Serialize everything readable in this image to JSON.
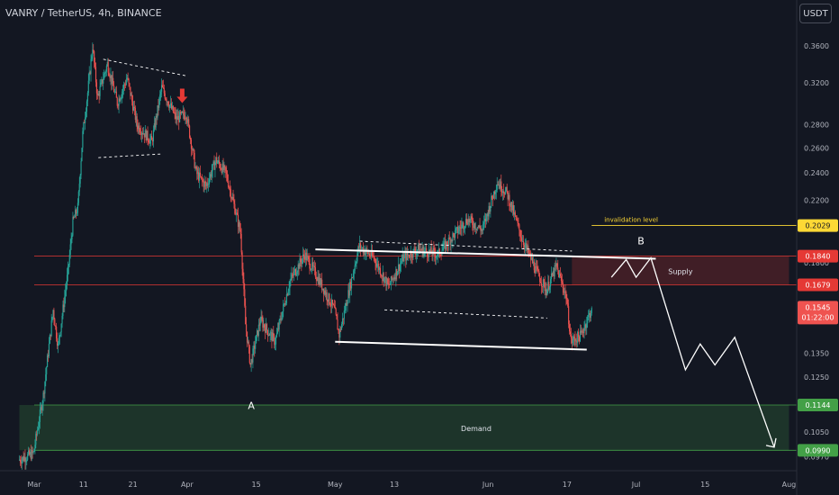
{
  "header": {
    "symbol_label": "VANRY / TetherUS, 4h, BINANCE",
    "currency_button": "USDT"
  },
  "chart_data": {
    "type": "candlestick",
    "title": "VANRY / TetherUS, 4h, BINANCE",
    "y_axis": {
      "scale": "log",
      "ticks": [
        "0.3600",
        "0.3200",
        "0.2800",
        "0.2600",
        "0.2400",
        "0.2200",
        "0.1800",
        "0.1350",
        "0.1250",
        "0.1050",
        "0.0970"
      ]
    },
    "x_axis": {
      "ticks": [
        "Mar",
        "11",
        "21",
        "Apr",
        "15",
        "May",
        "13",
        "Jun",
        "17",
        "Jul",
        "15",
        "Aug"
      ]
    },
    "price_path": [
      [
        "2024-02-27",
        0.096
      ],
      [
        "2024-03-01",
        0.098
      ],
      [
        "2024-03-03",
        0.118
      ],
      [
        "2024-03-05",
        0.155
      ],
      [
        "2024-03-06",
        0.138
      ],
      [
        "2024-03-08",
        0.175
      ],
      [
        "2024-03-09",
        0.205
      ],
      [
        "2024-03-10",
        0.215
      ],
      [
        "2024-03-11",
        0.272
      ],
      [
        "2024-03-12",
        0.31
      ],
      [
        "2024-03-13",
        0.36
      ],
      [
        "2024-03-14",
        0.305
      ],
      [
        "2024-03-16",
        0.34
      ],
      [
        "2024-03-18",
        0.3
      ],
      [
        "2024-03-20",
        0.325
      ],
      [
        "2024-03-22",
        0.28
      ],
      [
        "2024-03-25",
        0.265
      ],
      [
        "2024-03-27",
        0.315
      ],
      [
        "2024-03-30",
        0.285
      ],
      [
        "2024-04-01",
        0.29
      ],
      [
        "2024-04-03",
        0.24
      ],
      [
        "2024-04-05",
        0.23
      ],
      [
        "2024-04-07",
        0.25
      ],
      [
        "2024-04-09",
        0.24
      ],
      [
        "2024-04-11",
        0.212
      ],
      [
        "2024-04-12",
        0.198
      ],
      [
        "2024-04-13",
        0.148
      ],
      [
        "2024-04-14",
        0.13
      ],
      [
        "2024-04-16",
        0.15
      ],
      [
        "2024-04-19",
        0.14
      ],
      [
        "2024-04-22",
        0.17
      ],
      [
        "2024-04-25",
        0.185
      ],
      [
        "2024-04-28",
        0.17
      ],
      [
        "2024-05-01",
        0.155
      ],
      [
        "2024-05-02",
        0.143
      ],
      [
        "2024-05-04",
        0.165
      ],
      [
        "2024-05-06",
        0.19
      ],
      [
        "2024-05-09",
        0.183
      ],
      [
        "2024-05-12",
        0.167
      ],
      [
        "2024-05-15",
        0.183
      ],
      [
        "2024-05-18",
        0.188
      ],
      [
        "2024-05-22",
        0.185
      ],
      [
        "2024-05-25",
        0.196
      ],
      [
        "2024-05-28",
        0.207
      ],
      [
        "2024-05-31",
        0.2
      ],
      [
        "2024-06-03",
        0.233
      ],
      [
        "2024-06-05",
        0.225
      ],
      [
        "2024-06-08",
        0.195
      ],
      [
        "2024-06-11",
        0.175
      ],
      [
        "2024-06-13",
        0.165
      ],
      [
        "2024-06-15",
        0.178
      ],
      [
        "2024-06-17",
        0.162
      ],
      [
        "2024-06-18",
        0.14
      ],
      [
        "2024-06-20",
        0.143
      ],
      [
        "2024-06-22",
        0.1545
      ]
    ],
    "current_price": {
      "value": "0.1545",
      "countdown": "01:22:00"
    },
    "levels": [
      {
        "name": "invalidation level",
        "label": "invalidation level",
        "value": "0.2029",
        "color": "#fdd835"
      },
      {
        "name": "supply top",
        "value": "0.1840",
        "color": "#e53935"
      },
      {
        "name": "supply bottom",
        "value": "0.1679",
        "color": "#e53935"
      },
      {
        "name": "demand top",
        "value": "0.1144",
        "color": "#43a047"
      },
      {
        "name": "demand bottom",
        "value": "0.0990",
        "color": "#43a047"
      }
    ],
    "zones": [
      {
        "name": "Supply",
        "label": "Supply",
        "from": 0.1679,
        "to": 0.184,
        "x_from": "2024-06-18",
        "x_to": "2024-08-01",
        "color": "#e53935"
      },
      {
        "name": "Demand",
        "label": "Demand",
        "from": 0.099,
        "to": 0.1144,
        "x_from": "2024-02-27",
        "x_to": "2024-08-01",
        "color": "#43a047"
      }
    ],
    "annotations": [
      {
        "label": "A",
        "x": "2024-04-14",
        "y": 0.113
      },
      {
        "label": "B",
        "x": "2024-07-02",
        "y": 0.191
      }
    ],
    "trendlines": [
      {
        "style": "solid",
        "from": [
          "2024-04-27",
          0.188
        ],
        "to": [
          "2024-07-05",
          0.1825
        ]
      },
      {
        "style": "solid",
        "from": [
          "2024-05-01",
          0.14
        ],
        "to": [
          "2024-06-21",
          0.1365
        ]
      },
      {
        "style": "dashed",
        "from": [
          "2024-03-15",
          0.345
        ],
        "to": [
          "2024-04-01",
          0.327
        ]
      },
      {
        "style": "dashed",
        "from": [
          "2024-03-14",
          0.252
        ],
        "to": [
          "2024-03-27",
          0.255
        ]
      },
      {
        "style": "dashed",
        "from": [
          "2024-05-06",
          0.193
        ],
        "to": [
          "2024-06-18",
          0.187
        ]
      },
      {
        "style": "dashed",
        "from": [
          "2024-05-11",
          0.155
        ],
        "to": [
          "2024-06-13",
          0.151
        ]
      }
    ],
    "projection": [
      [
        "2024-06-26",
        0.172
      ],
      [
        "2024-06-29",
        0.182
      ],
      [
        "2024-07-01",
        0.172
      ],
      [
        "2024-07-04",
        0.183
      ],
      [
        "2024-07-11",
        0.128
      ],
      [
        "2024-07-14",
        0.139
      ],
      [
        "2024-07-17",
        0.13
      ],
      [
        "2024-07-21",
        0.142
      ],
      [
        "2024-07-29",
        0.1
      ]
    ],
    "signal_arrow": {
      "direction": "down",
      "x": "2024-03-31",
      "y": 0.3,
      "color": "#e53935"
    },
    "colors": {
      "background": "#131722",
      "up": "#26a69a",
      "down": "#ef5350",
      "axis_text": "#b2b5be"
    }
  }
}
